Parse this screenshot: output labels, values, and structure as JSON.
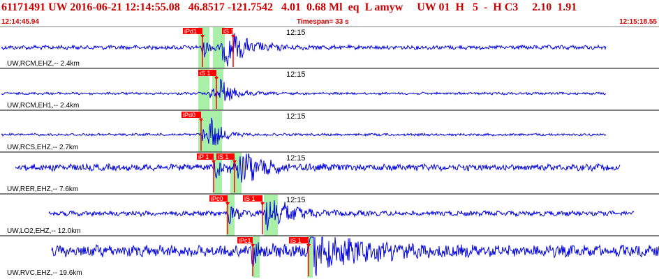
{
  "header": {
    "title": "61171491 UW 2016-06-21 12:14:55.08   46.8517 -121.7542   4.01  0.68 Ml  eq  L amyw     UW 01  H   5  -  H C3     2.10  1.91",
    "start_time": "12:14:45.94",
    "timespan": "Timespan=  33 s",
    "end_time": "12:15:18.55"
  },
  "colors": {
    "trace": "#0000dd",
    "pick": "#ff0000",
    "window": "#a8f0a8",
    "header_text": "#cc0000"
  },
  "panels": [
    {
      "label": "UW,RCM,EHZ,-- 2.4km",
      "time_mark": "12:15",
      "picks": [
        {
          "text": "iPd1"
        },
        {
          "text": "iS 1"
        }
      ]
    },
    {
      "label": "UW,RCM,EH1,-- 2.4km",
      "time_mark": "12:15",
      "picks": [
        {
          "text": "iS 1"
        }
      ]
    },
    {
      "label": "UW,RCS,EHZ,-- 2.7km",
      "time_mark": "12:15",
      "picks": [
        {
          "text": "iPd0"
        }
      ]
    },
    {
      "label": "UW,RER,EHZ,-- 7.6km",
      "time_mark": "12:15",
      "picks": [
        {
          "text": "iP 1"
        },
        {
          "text": "iS 1"
        }
      ]
    },
    {
      "label": "UW,LO2,EHZ,-- 12.0km",
      "time_mark": "12:15",
      "picks": [
        {
          "text": "iPc0"
        },
        {
          "text": "iS 1"
        }
      ]
    },
    {
      "label": "UW,RVC,EHZ,-- 19.6km",
      "time_mark": "",
      "picks": [
        {
          "text": "iPc1"
        },
        {
          "text": "iS 1"
        }
      ]
    }
  ]
}
